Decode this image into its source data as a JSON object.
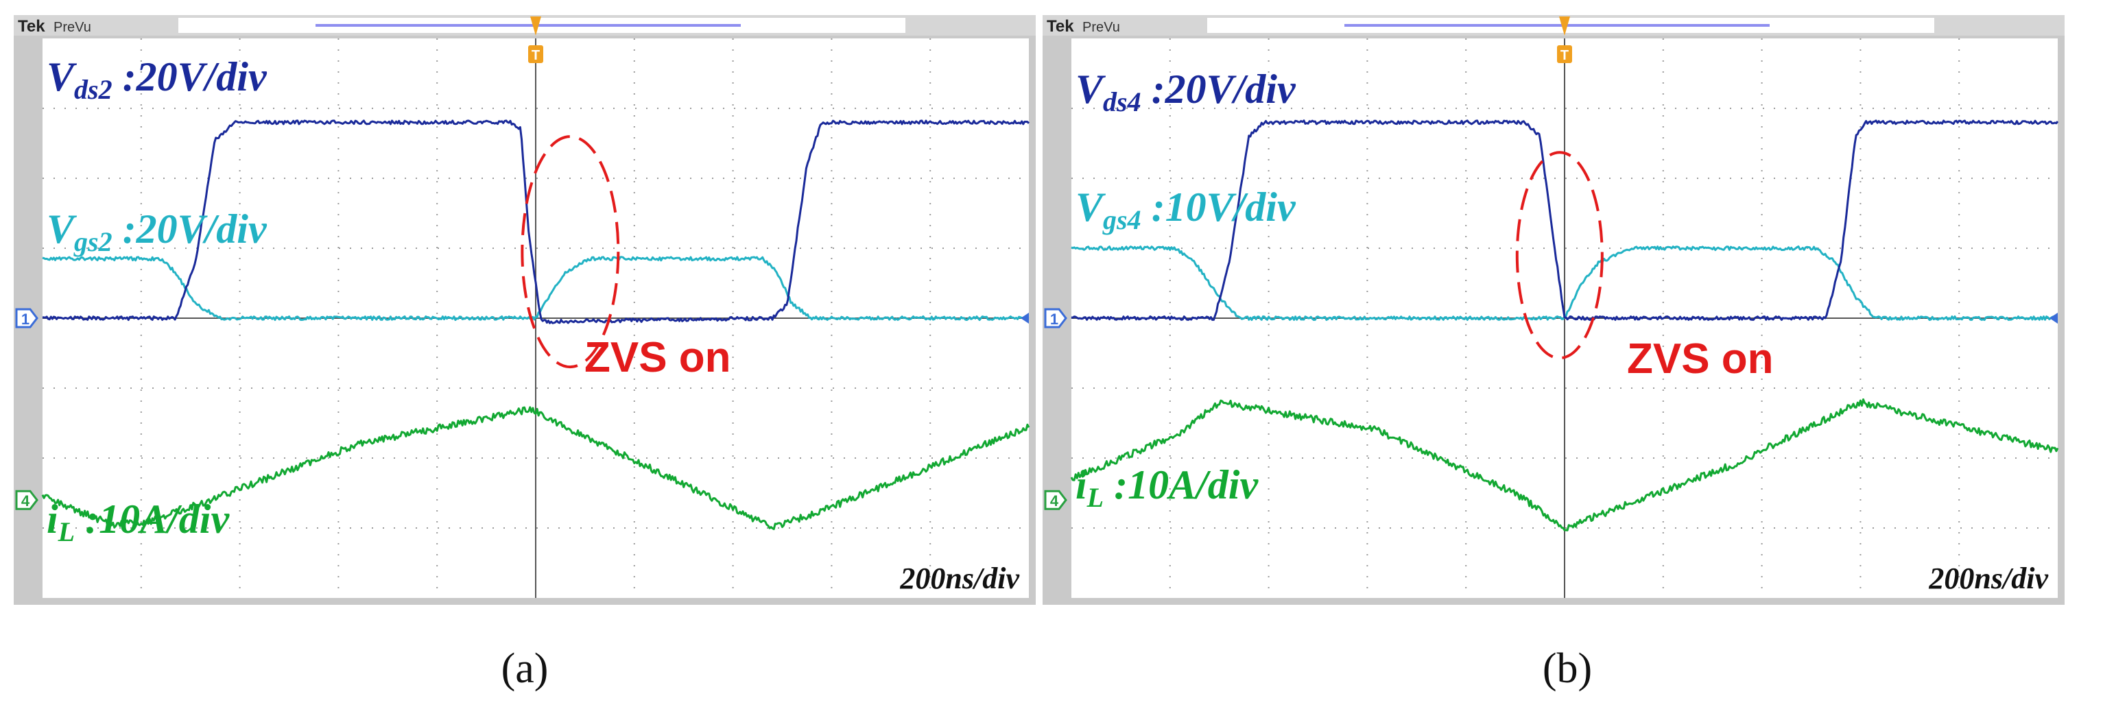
{
  "colors": {
    "vds": "#1a2a9a",
    "vgs": "#22b2c4",
    "il": "#12a832",
    "annotation": "#e31b1b",
    "grid": "#9a9a9a",
    "frame": "#c9c9c9",
    "trigger": "#f0a020",
    "marker_ch1": "#3a6cd8",
    "marker_ch4": "#28a040"
  },
  "chart_data": [
    {
      "type": "line",
      "caption": "(a)",
      "scope_brand": "Tek",
      "scope_mode": "PreVu",
      "timebase_label": "200ns/div",
      "channel_markers": [
        "1",
        "4"
      ],
      "trigger_marker": "T",
      "annotation": "ZVS on",
      "xlim": [
        0,
        10
      ],
      "ylim": [
        -4,
        4
      ],
      "grid": true,
      "labels": {
        "vds": {
          "main": "V",
          "sub": "ds2",
          "rest": " :20V/div"
        },
        "vgs": {
          "main": "V",
          "sub": "gs2",
          "rest": " :20V/div"
        },
        "il": {
          "main": "i",
          "sub": "L",
          "rest": " :10A/div"
        }
      },
      "series": [
        {
          "key": "vds",
          "x": [
            0,
            1.35,
            1.55,
            1.75,
            1.95,
            4.75,
            4.85,
            4.93,
            5.05,
            5.1,
            7.4,
            7.55,
            7.75,
            7.9,
            10
          ],
          "y": [
            0,
            0,
            0.8,
            2.55,
            2.8,
            2.8,
            2.7,
            1.2,
            0,
            -0.05,
            0,
            0.2,
            2.2,
            2.8,
            2.8
          ]
        },
        {
          "key": "vgs",
          "x": [
            0,
            1.2,
            1.35,
            1.55,
            1.8,
            4.95,
            5.0,
            5.15,
            5.3,
            5.55,
            7.3,
            7.45,
            7.6,
            7.8,
            10
          ],
          "y": [
            0.85,
            0.85,
            0.65,
            0.2,
            0,
            0,
            0,
            0.35,
            0.65,
            0.85,
            0.85,
            0.65,
            0.2,
            0,
            0
          ]
        },
        {
          "key": "il",
          "x": [
            0,
            0.7,
            1.1,
            1.7,
            3.2,
            4.95,
            5.3,
            7.4,
            8.0,
            10
          ],
          "y": [
            -2.55,
            -2.95,
            -2.9,
            -2.6,
            -1.8,
            -1.3,
            -1.55,
            -3.0,
            -2.7,
            -1.55
          ]
        }
      ]
    },
    {
      "type": "line",
      "caption": "(b)",
      "scope_brand": "Tek",
      "scope_mode": "PreVu",
      "timebase_label": "200ns/div",
      "channel_markers": [
        "1",
        "4"
      ],
      "trigger_marker": "T",
      "annotation": "ZVS on",
      "xlim": [
        0,
        10
      ],
      "ylim": [
        -4,
        4
      ],
      "grid": true,
      "labels": {
        "vds": {
          "main": "V",
          "sub": "ds4",
          "rest": " :20V/div"
        },
        "vgs": {
          "main": "V",
          "sub": "gs4",
          "rest": " :10V/div"
        },
        "il": {
          "main": "i",
          "sub": "L",
          "rest": " :10A/div"
        }
      },
      "series": [
        {
          "key": "vds",
          "x": [
            0,
            1.45,
            1.6,
            1.8,
            1.95,
            4.6,
            4.75,
            4.9,
            5.0,
            7.65,
            7.8,
            7.95,
            8.05,
            10
          ],
          "y": [
            0,
            0,
            0.8,
            2.6,
            2.8,
            2.8,
            2.6,
            1.0,
            0,
            0,
            0.8,
            2.6,
            2.8,
            2.8
          ]
        },
        {
          "key": "vgs",
          "x": [
            0,
            1.05,
            1.25,
            1.5,
            1.7,
            4.95,
            5.0,
            5.15,
            5.35,
            5.7,
            7.55,
            7.75,
            7.95,
            8.15,
            10
          ],
          "y": [
            1.0,
            1.0,
            0.8,
            0.3,
            0,
            0,
            0,
            0.45,
            0.8,
            1.0,
            1.0,
            0.8,
            0.3,
            0,
            0
          ]
        },
        {
          "key": "il",
          "x": [
            0,
            1.1,
            1.5,
            3.1,
            4.5,
            5.0,
            6.7,
            8.0,
            8.3,
            10
          ],
          "y": [
            -2.3,
            -1.65,
            -1.2,
            -1.6,
            -2.5,
            -3.0,
            -2.1,
            -1.2,
            -1.3,
            -1.9
          ]
        }
      ]
    }
  ]
}
